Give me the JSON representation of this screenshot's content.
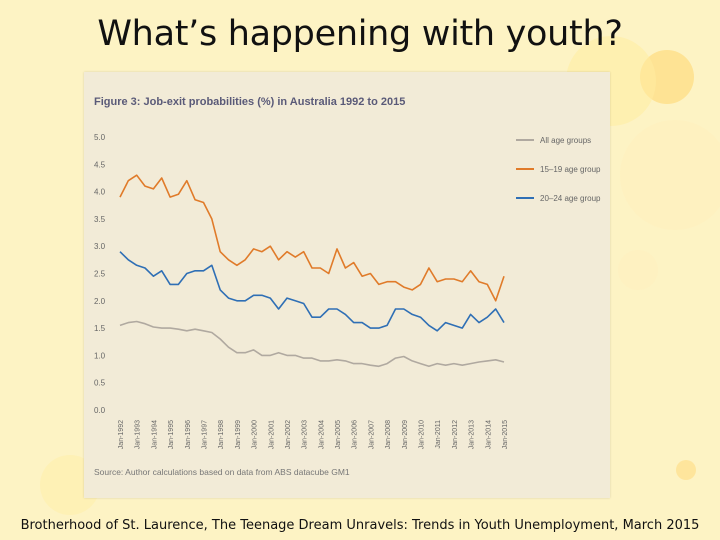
{
  "slide": {
    "title": "What’s happening with youth?",
    "caption": "Brotherhood of St. Laurence, The Teenage Dream Unravels: Trends in Youth Unemployment, March 2015"
  },
  "chart_data": {
    "type": "line",
    "title": "Figure 3: Job-exit probabilities (%) in Australia 1992 to 2015",
    "source": "Source: Author calculations based on data from ABS datacube GM1",
    "ylim": [
      0,
      5.0
    ],
    "y_ticks": [
      "5.0",
      "4.5",
      "4.0",
      "3.5",
      "3.0",
      "2.5",
      "2.0",
      "1.5",
      "1.0",
      "0.5",
      "0.0"
    ],
    "x_ticks": [
      "Jan-1992",
      "Jan-1993",
      "Jan-1994",
      "Jan-1995",
      "Jan-1996",
      "Jan-1997",
      "Jan-1998",
      "Jan-1999",
      "Jan-2000",
      "Jan-2001",
      "Jan-2002",
      "Jan-2003",
      "Jan-2004",
      "Jan-2005",
      "Jan-2006",
      "Jan-2007",
      "Jan-2008",
      "Jan-2009",
      "Jan-2010",
      "Jan-2011",
      "Jan-2012",
      "Jan-2013",
      "Jan-2014",
      "Jan-2015"
    ],
    "x": [
      1992,
      1992.5,
      1993,
      1993.5,
      1994,
      1994.5,
      1995,
      1995.5,
      1996,
      1996.5,
      1997,
      1997.5,
      1998,
      1998.5,
      1999,
      1999.5,
      2000,
      2000.5,
      2001,
      2001.5,
      2002,
      2002.5,
      2003,
      2003.5,
      2004,
      2004.5,
      2005,
      2005.5,
      2006,
      2006.5,
      2007,
      2007.5,
      2008,
      2008.5,
      2009,
      2009.5,
      2010,
      2010.5,
      2011,
      2011.5,
      2012,
      2012.5,
      2013,
      2013.5,
      2014,
      2014.5,
      2015
    ],
    "grid": false,
    "legend_position": "top-right",
    "series": [
      {
        "name": "All age groups",
        "color": "#b0a9a0",
        "values": [
          1.55,
          1.6,
          1.62,
          1.58,
          1.52,
          1.5,
          1.5,
          1.48,
          1.45,
          1.48,
          1.45,
          1.42,
          1.3,
          1.15,
          1.05,
          1.05,
          1.1,
          1.0,
          1.0,
          1.05,
          1.0,
          1.0,
          0.95,
          0.95,
          0.9,
          0.9,
          0.92,
          0.9,
          0.85,
          0.85,
          0.82,
          0.8,
          0.85,
          0.95,
          0.98,
          0.9,
          0.85,
          0.8,
          0.85,
          0.82,
          0.85,
          0.82,
          0.85,
          0.88,
          0.9,
          0.92,
          0.88
        ]
      },
      {
        "name": "15–19 age group",
        "color": "#e07b2a",
        "values": [
          3.9,
          4.2,
          4.3,
          4.1,
          4.05,
          4.25,
          3.9,
          3.95,
          4.2,
          3.85,
          3.8,
          3.5,
          2.9,
          2.75,
          2.65,
          2.75,
          2.95,
          2.9,
          3.0,
          2.75,
          2.9,
          2.8,
          2.9,
          2.6,
          2.6,
          2.5,
          2.95,
          2.6,
          2.7,
          2.45,
          2.5,
          2.3,
          2.35,
          2.35,
          2.25,
          2.2,
          2.3,
          2.6,
          2.35,
          2.4,
          2.4,
          2.35,
          2.55,
          2.35,
          2.3,
          2.0,
          2.45
        ]
      },
      {
        "name": "20–24 age group",
        "color": "#2f6fb5",
        "values": [
          2.9,
          2.75,
          2.65,
          2.6,
          2.45,
          2.55,
          2.3,
          2.3,
          2.5,
          2.55,
          2.55,
          2.65,
          2.2,
          2.05,
          2.0,
          2.0,
          2.1,
          2.1,
          2.05,
          1.85,
          2.05,
          2.0,
          1.95,
          1.7,
          1.7,
          1.85,
          1.85,
          1.75,
          1.6,
          1.6,
          1.5,
          1.5,
          1.55,
          1.85,
          1.85,
          1.75,
          1.7,
          1.55,
          1.45,
          1.6,
          1.55,
          1.5,
          1.75,
          1.6,
          1.7,
          1.85,
          1.6
        ]
      }
    ]
  }
}
